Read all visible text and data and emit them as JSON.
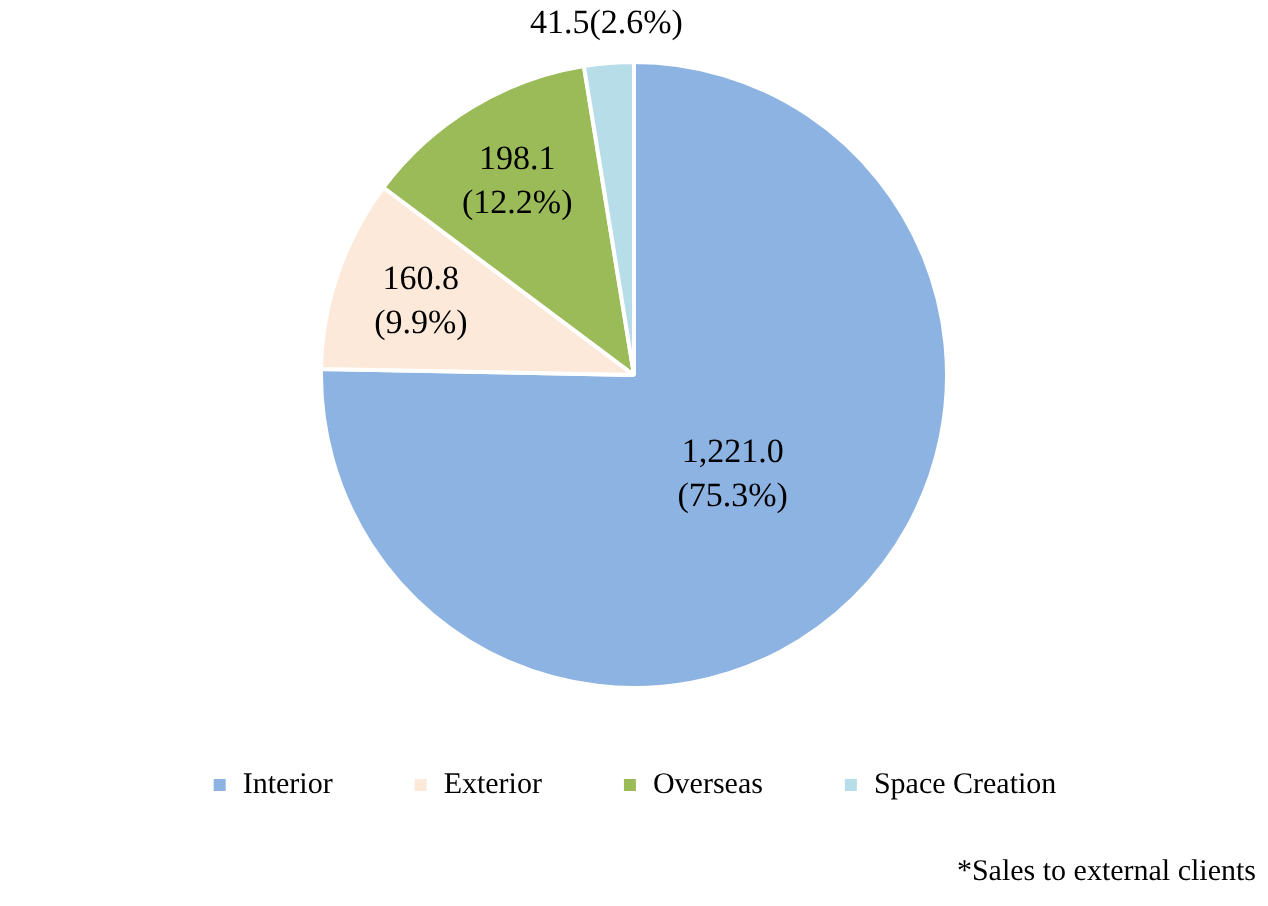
{
  "chart_data": {
    "type": "pie",
    "categories": [
      "Interior",
      "Exterior",
      "Overseas",
      "Space Creation"
    ],
    "values": [
      1221.0,
      160.8,
      198.1,
      41.5
    ],
    "colors": [
      "#8db3e2",
      "#fce9da",
      "#9bbb59",
      "#b7dde8"
    ],
    "value_labels": [
      "1,221.0\n(75.3%)",
      "160.8\n(9.9%)",
      "198.1\n(12.2%)",
      "41.5(2.6%)"
    ],
    "legend": "bottom",
    "annotations": [
      "*Sales to external clients"
    ]
  }
}
